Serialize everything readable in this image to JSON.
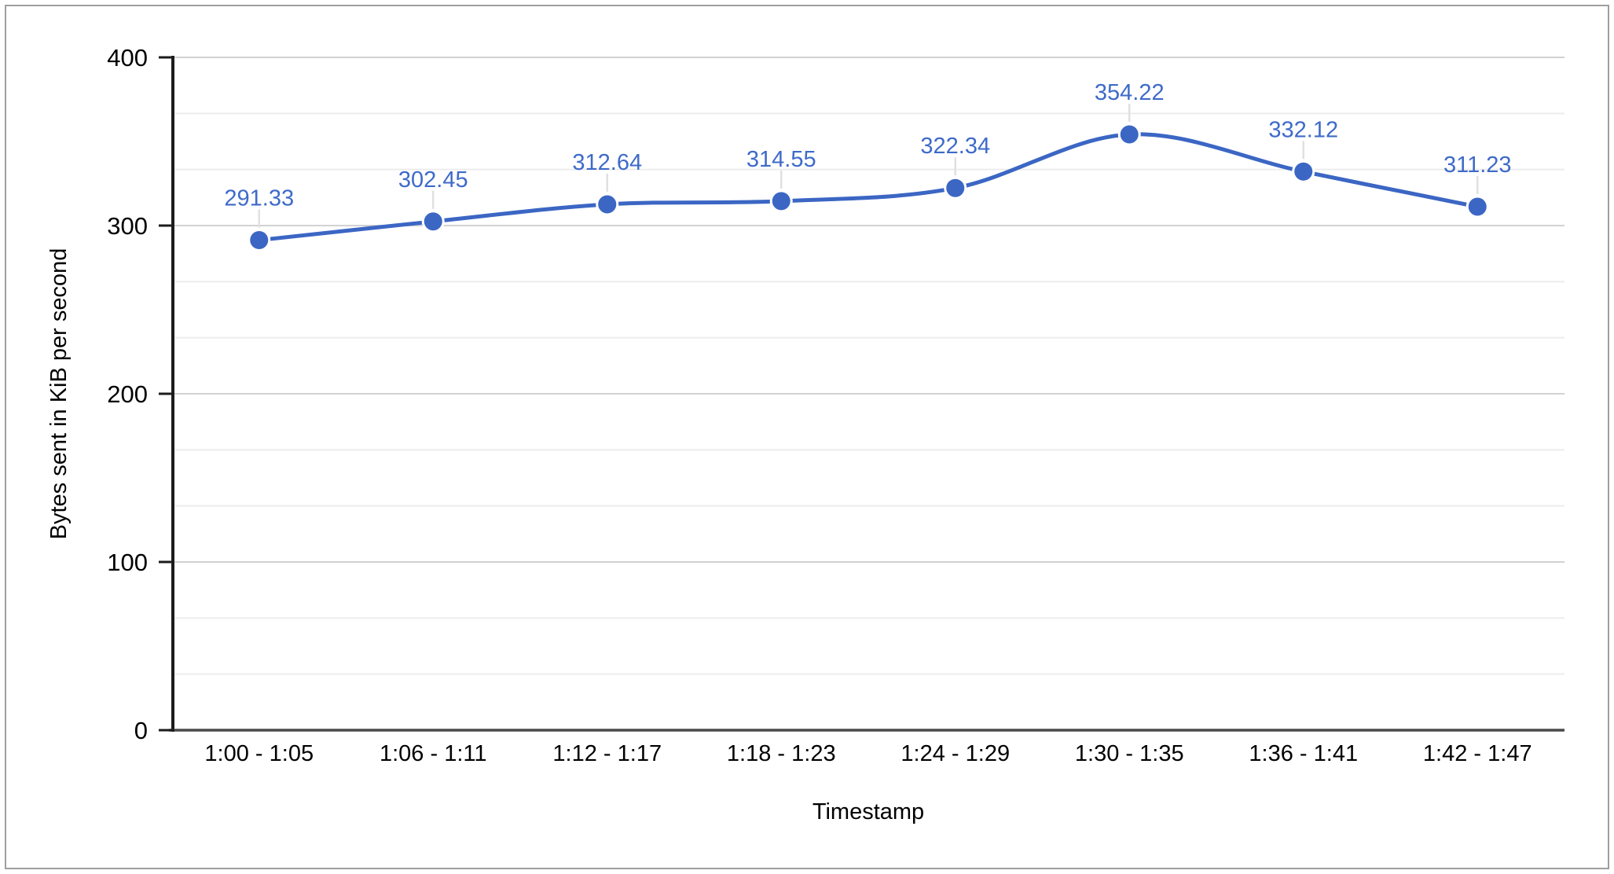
{
  "window": {
    "background": "#ffffff",
    "border_color": "#9e9e9e"
  },
  "chart_data": {
    "type": "line",
    "curve": "smooth",
    "title": "",
    "xlabel": "Timestamp",
    "ylabel": "Bytes sent in KiB per second",
    "categories": [
      "1:00 - 1:05",
      "1:06 - 1:11",
      "1:12 - 1:17",
      "1:18 - 1:23",
      "1:24 - 1:29",
      "1:30 - 1:35",
      "1:36 - 1:41",
      "1:42 - 1:47"
    ],
    "values": [
      291.33,
      302.45,
      312.64,
      314.55,
      322.34,
      354.22,
      332.12,
      311.23
    ],
    "point_labels": [
      "291.33",
      "302.45",
      "312.64",
      "314.55",
      "322.34",
      "354.22",
      "332.12",
      "311.23"
    ],
    "ylim": [
      0,
      400
    ],
    "y_major_ticks": [
      0,
      100,
      200,
      300,
      400
    ],
    "y_minor_divisions": 3,
    "grid": true,
    "legend": "none",
    "data_labels": true,
    "colors": {
      "series_line": "#3b66c4",
      "marker_fill": "#3b66c4",
      "marker_outline": "#ffffff",
      "data_label": "#3e6ac9",
      "axis_text": "#000000",
      "y_axis_line": "#1c1c1c",
      "baseline": "#4a4a4a",
      "major_gridline": "#d2d2d2",
      "minor_gridline": "#ececec",
      "leader_line": "#e0e0e0"
    }
  }
}
